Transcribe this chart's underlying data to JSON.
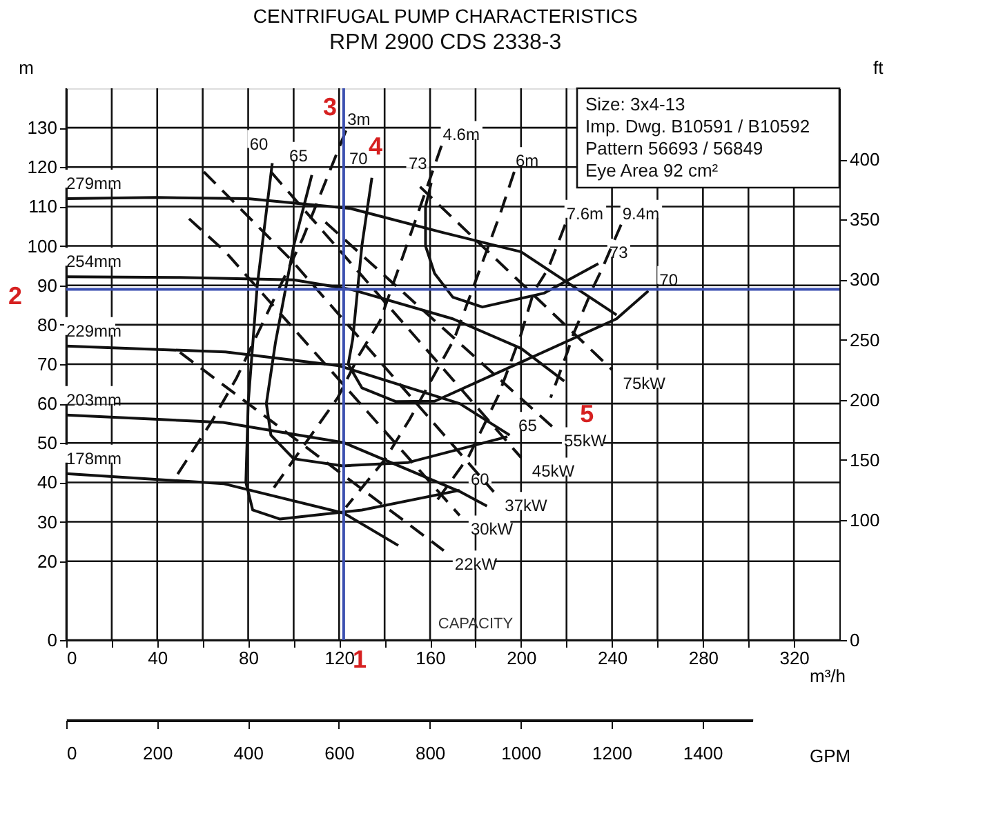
{
  "chart_data": {
    "type": "line",
    "title": "CENTRIFUGAL PUMP CHARACTERISTICS",
    "subtitle": "RPM  2900      CDS 2338-3",
    "xlabel": "m³/h",
    "ylabel": "m",
    "y2label": "ft",
    "x2label": "GPM",
    "xlim": [
      0,
      340
    ],
    "ylim": [
      0,
      140
    ],
    "y2lim": [
      0,
      459.3
    ],
    "x2lim": [
      0,
      1510
    ],
    "xticks": [
      0,
      {
        "value": 20,
        "label": null
      },
      40,
      {
        "value": 60,
        "label": null
      },
      80,
      {
        "value": 100,
        "label": null
      },
      120,
      {
        "value": 140,
        "label": null
      },
      160,
      {
        "value": 180,
        "label": null
      },
      200,
      {
        "value": 220,
        "label": null
      },
      240,
      {
        "value": 260,
        "label": null
      },
      280,
      {
        "value": 300,
        "label": null
      },
      320
    ],
    "yticks": [
      0,
      20,
      30,
      40,
      50,
      60,
      70,
      80,
      90,
      100,
      110,
      120,
      130
    ],
    "y2ticks": [
      0,
      100,
      150,
      200,
      250,
      300,
      350,
      400
    ],
    "x2ticks": [
      0,
      200,
      400,
      600,
      800,
      1000,
      1200,
      1400
    ],
    "grid": true,
    "marker": "none",
    "series": [
      {
        "name": "279mm",
        "color": "#111111",
        "line_style": "solid",
        "x": [
          0,
          40,
          80,
          125,
          165,
          200,
          242
        ],
        "values": [
          112,
          112.3,
          112,
          109.5,
          103.5,
          98.5,
          82.5
        ]
      },
      {
        "name": "254mm",
        "color": "#111111",
        "line_style": "solid",
        "x": [
          0,
          50,
          100,
          125,
          170,
          200,
          219
        ],
        "values": [
          92.2,
          92,
          91.4,
          89,
          81.5,
          74,
          65.7
        ]
      },
      {
        "name": "229mm",
        "color": "#111111",
        "line_style": "solid",
        "x": [
          0,
          70,
          120,
          173,
          195
        ],
        "values": [
          74.6,
          73.1,
          69.6,
          60,
          52
        ]
      },
      {
        "name": "203mm",
        "color": "#111111",
        "line_style": "solid",
        "x": [
          0,
          69,
          122,
          173,
          185
        ],
        "values": [
          57.1,
          55.2,
          50.1,
          37.7,
          34
        ]
      },
      {
        "name": "178mm",
        "color": "#111111",
        "line_style": "solid",
        "x": [
          0,
          69,
          122,
          146
        ],
        "values": [
          42.2,
          39.7,
          32.2,
          24
        ]
      },
      {
        "name": "60",
        "color": "#111111",
        "line_style": "solid",
        "x": [
          90.6,
          84,
          80,
          79,
          82,
          94,
          130,
          173
        ],
        "values": [
          121,
          90,
          60,
          40,
          33,
          30.7,
          33,
          38
        ]
      },
      {
        "name": "65",
        "color": "#111111",
        "line_style": "solid",
        "x": [
          108,
          100,
          92,
          88,
          90,
          100,
          121.6,
          150,
          194
        ],
        "values": [
          118,
          100,
          75.5,
          60,
          52,
          46,
          44.2,
          45,
          51.6
        ]
      },
      {
        "name": "70",
        "color": "#111111",
        "line_style": "solid",
        "x": [
          134.4,
          130,
          126,
          124,
          130,
          145,
          162,
          200,
          242,
          256
        ],
        "values": [
          117.3,
          100,
          76.4,
          70,
          64,
          60.5,
          60.6,
          70.5,
          81.5,
          88.6
        ]
      },
      {
        "name": "73",
        "color": "#111111",
        "line_style": "solid",
        "x": [
          160.5,
          158,
          158,
          162,
          170,
          183,
          210,
          234
        ],
        "values": [
          116,
          110,
          100,
          93,
          87,
          84.5,
          88,
          95.5
        ]
      },
      {
        "name": "3m",
        "color": "#111111",
        "line_style": "dashed",
        "x": [
          123,
          112,
          104,
          75,
          64,
          48
        ],
        "values": [
          129.3,
          113.4,
          101.9,
          66.6,
          55.5,
          41.2
        ]
      },
      {
        "name": "4.6m",
        "color": "#111111",
        "line_style": "dashed",
        "x": [
          165,
          148,
          138,
          129,
          119.4,
          90
        ],
        "values": [
          125.4,
          97.3,
          81,
          72.5,
          61.5,
          37.6
        ]
      },
      {
        "name": "6m",
        "color": "#111111",
        "line_style": "dashed",
        "x": [
          197,
          191,
          180.6,
          170.6,
          151,
          140,
          123
        ],
        "values": [
          118.8,
          108.4,
          92,
          76.4,
          56,
          45.7,
          33.7
        ]
      },
      {
        "name": "7.6m",
        "color": "#111111",
        "line_style": "dashed",
        "x": [
          219.4,
          212,
          205.6,
          200,
          190,
          177,
          162
        ],
        "values": [
          105.4,
          94.3,
          88.4,
          77.6,
          62,
          46.6,
          34.6
        ]
      },
      {
        "name": "9.4m",
        "color": "#111111",
        "line_style": "dashed",
        "x": [
          244,
          235.5,
          231.7,
          223,
          220.6,
          213
        ],
        "values": [
          105.4,
          94,
          89.5,
          77.6,
          73.4,
          61.5
        ]
      },
      {
        "name": "22kW",
        "color": "#111111",
        "line_style": "dashed",
        "x": [
          50,
          166
        ],
        "values": [
          73,
          22.7
        ]
      },
      {
        "name": "30kW",
        "color": "#111111",
        "line_style": "dashed",
        "x": [
          54,
          70,
          173
        ],
        "values": [
          106.9,
          98.5,
          31.6
        ]
      },
      {
        "name": "37kW",
        "color": "#111111",
        "line_style": "dashed",
        "x": [
          60.5,
          99,
          188
        ],
        "values": [
          118.8,
          96.4,
          37.6
        ]
      },
      {
        "name": "45kW",
        "color": "#111111",
        "line_style": "dashed",
        "x": [
          90,
          200
        ],
        "values": [
          118.8,
          46.3
        ]
      },
      {
        "name": "55kW",
        "color": "#111111",
        "line_style": "dashed",
        "x": [
          114,
          214
        ],
        "values": [
          106,
          54
        ]
      },
      {
        "name": "75kW",
        "color": "#111111",
        "line_style": "dashed",
        "x": [
          155.6,
          240
        ],
        "values": [
          115,
          68.6
        ]
      }
    ],
    "ref_lines": [
      {
        "axis": "x",
        "value": 122,
        "color": "#3b4fb0"
      },
      {
        "axis": "y",
        "value": 89,
        "color": "#3b4fb0"
      }
    ],
    "annotations": [
      "Size: 3x4-13",
      "Imp. Dwg. B10591 / B10592",
      "Pattern 56693  /  56849",
      "Eye Area   92  cm²",
      "1",
      "2",
      "3",
      "4",
      "5",
      "CAPACITY"
    ]
  }
}
